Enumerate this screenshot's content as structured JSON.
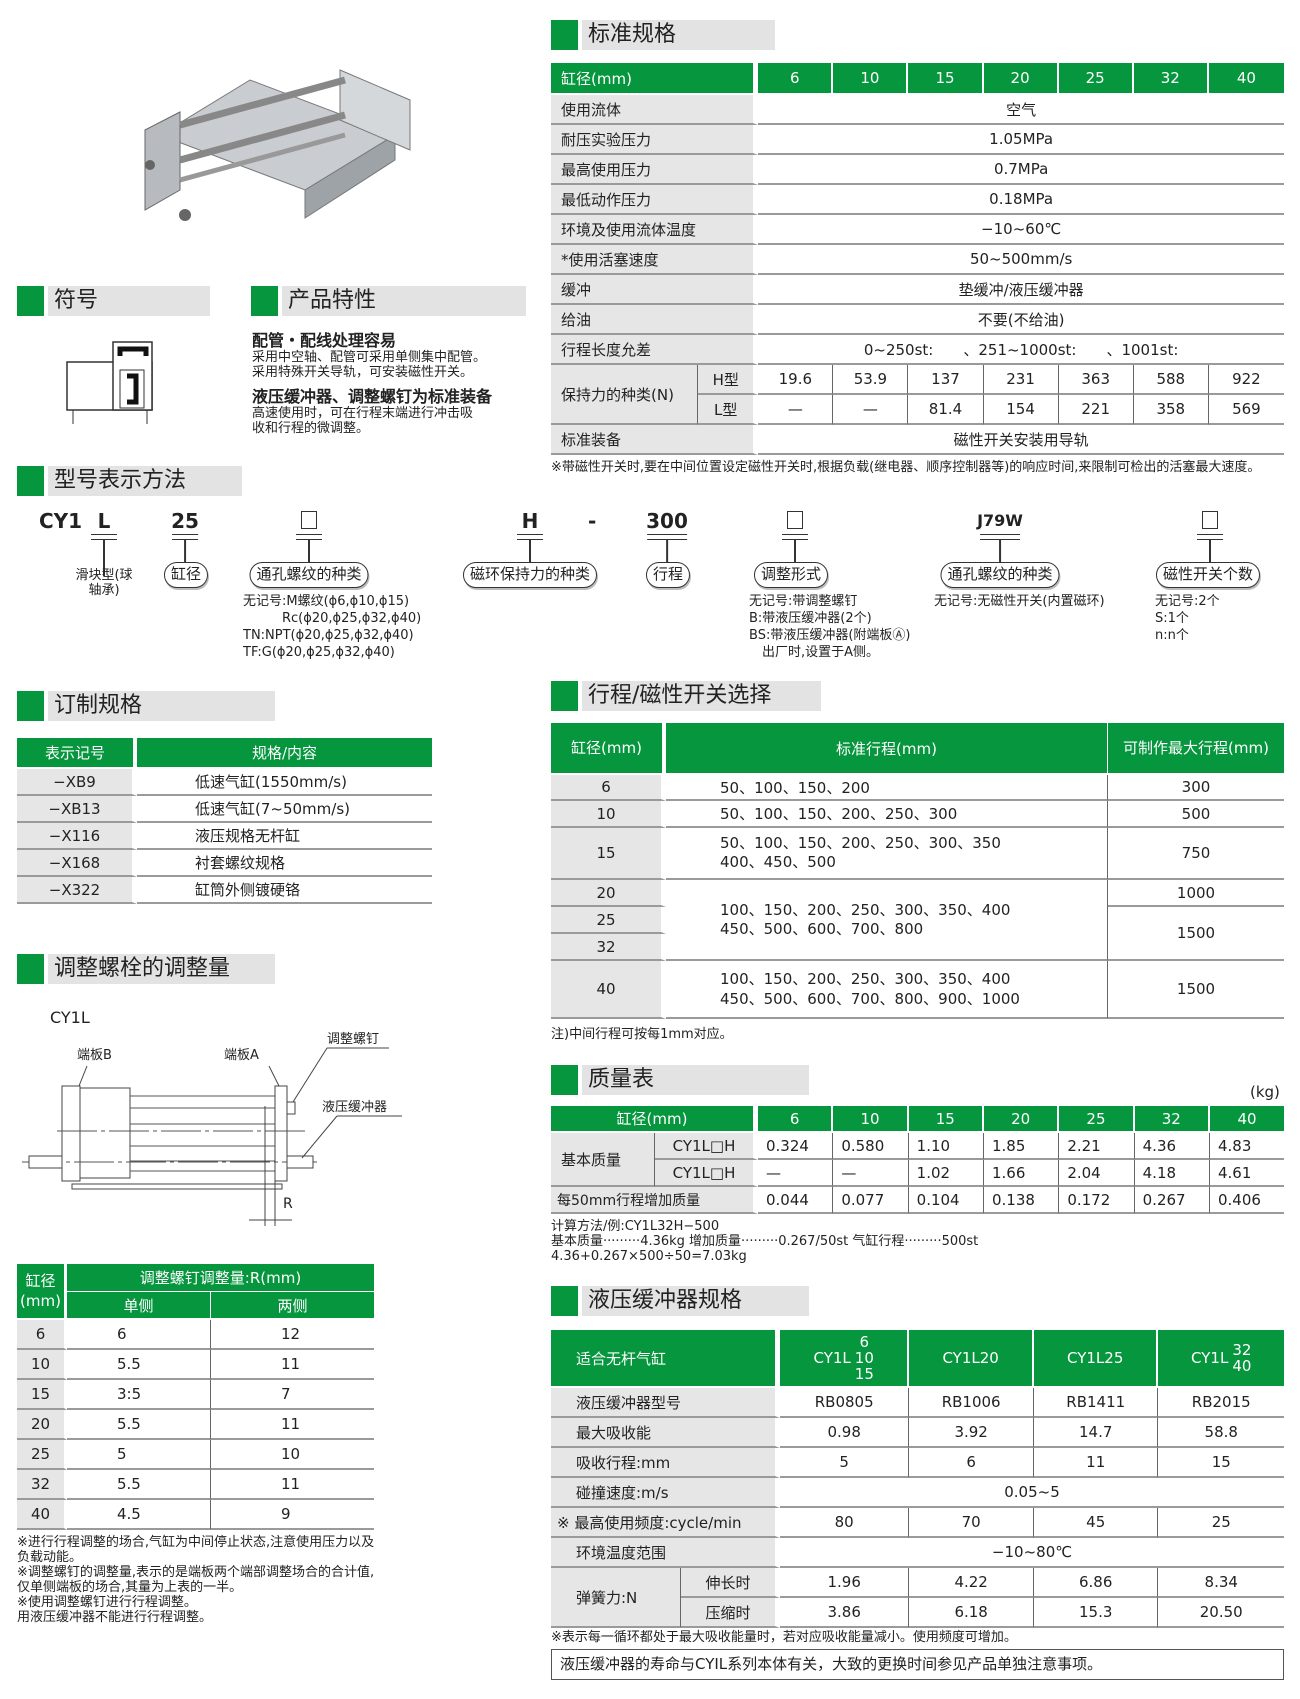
{
  "colors": {
    "accent": "#06963e",
    "label_bg": "#e6e6e6"
  },
  "symbol": {
    "title": "符号"
  },
  "features": {
    "title": "产品特性",
    "items": [
      {
        "heading": "配管・配线处理容易",
        "lines": [
          "采用中空轴、配管可采用单侧集中配管。",
          "采用特殊开关导轨，可安装磁性开关。"
        ]
      },
      {
        "heading": "液压缓冲器、调整螺钉为标准装备",
        "lines": [
          "高速使用时，可在行程末端进行冲击吸",
          "收和行程的微调整。"
        ]
      }
    ]
  },
  "spec": {
    "title": "标准规格",
    "header_label": "缸径(mm)",
    "bores": [
      "6",
      "10",
      "15",
      "20",
      "25",
      "32",
      "40"
    ],
    "rows": [
      {
        "label": "使用流体",
        "value": "空气"
      },
      {
        "label": "耐压实验压力",
        "value": "1.05MPa"
      },
      {
        "label": "最高使用压力",
        "value": "0.7MPa"
      },
      {
        "label": "最低动作压力",
        "value": "0.18MPa"
      },
      {
        "label": "环境及使用流体温度",
        "value": "−10~60℃"
      },
      {
        "label": "*使用活塞速度",
        "value": "50~500mm/s"
      },
      {
        "label": "缓冲",
        "value": "垫缓冲/液压缓冲器"
      },
      {
        "label": "给油",
        "value": "不要(不给油)"
      },
      {
        "label": "行程长度允差",
        "value": "0~250st:　　、251~1000st:　　、1001st:"
      }
    ],
    "holding": {
      "label": "保持力的种类(N)",
      "h_label": "H型",
      "l_label": "L型",
      "h": [
        "19.6",
        "53.9",
        "137",
        "231",
        "363",
        "588",
        "922"
      ],
      "l": [
        "—",
        "—",
        "81.4",
        "154",
        "221",
        "358",
        "569"
      ]
    },
    "equipment": {
      "label": "标准装备",
      "value": "磁性开关安装用导轨"
    },
    "footnote": "※带磁性开关时,要在中间位置设定磁性开关时,根据负载(继电器、顺序控制器等)的响应时间,来限制可检出的活塞最大速度。"
  },
  "model": {
    "title": "型号表示方法",
    "codes": {
      "prefix": "CY1",
      "l": "L",
      "bore": "25",
      "h": "H",
      "dash": "-",
      "stroke": "300",
      "switch": "J79W"
    },
    "labels": {
      "slider": "滑块型(球轴承)",
      "bore": "缸径",
      "port": "通孔螺纹的种类",
      "magnet": "磁环保持力的种类",
      "stroke": "行程",
      "adjust": "调整形式",
      "port2": "通孔螺纹的种类",
      "switch_count": "磁性开关个数"
    },
    "desc_port": [
      "无记号:M螺纹(ϕ6,ϕ10,ϕ15)",
      "　　　Rc(ϕ20,ϕ25,ϕ32,ϕ40)",
      "TN:NPT(ϕ20,ϕ25,ϕ32,ϕ40)",
      "TF:G(ϕ20,ϕ25,ϕ32,ϕ40)"
    ],
    "desc_adjust": [
      "无记号:带调整螺钉",
      "B:带液压缓冲器(2个)",
      "BS:带液压缓冲器(附端板Ⓐ)",
      "　出厂时,设置于A侧。"
    ],
    "desc_switch": [
      "无记号:无磁性开关(内置磁环)"
    ],
    "desc_count": [
      "无记号:2个",
      "S:1个",
      "n:n个"
    ]
  },
  "custom": {
    "title": "订制规格",
    "headers": [
      "表示记号",
      "规格/内容"
    ],
    "rows": [
      [
        "−XB9",
        "低速气缸(1550mm/s)"
      ],
      [
        "−XB13",
        "低速气缸(7~50mm/s)"
      ],
      [
        "−X116",
        "液压规格无杆缸"
      ],
      [
        "−X168",
        "衬套螺纹规格"
      ],
      [
        "−X322",
        "缸筒外侧镀硬铬"
      ]
    ]
  },
  "adjust": {
    "title": "调整螺栓的调整量",
    "model": "CY1L",
    "diagram_labels": {
      "plate_b": "端板B",
      "plate_a": "端板A",
      "screw": "调整螺钉",
      "buffer": "液压缓冲器",
      "r": "R"
    },
    "header_bore": "缸径(mm)",
    "header_main": "调整螺钉调整量:R(mm)",
    "header_single": "单侧",
    "header_both": "两侧",
    "rows": [
      [
        "6",
        "6",
        "12"
      ],
      [
        "10",
        "5.5",
        "11"
      ],
      [
        "15",
        "3:5",
        "7"
      ],
      [
        "20",
        "5.5",
        "11"
      ],
      [
        "25",
        "5",
        "10"
      ],
      [
        "32",
        "5.5",
        "11"
      ],
      [
        "40",
        "4.5",
        "9"
      ]
    ],
    "notes": [
      "※进行行程调整的场合,气缸为中间停止状态,注意使用压力以及负载动能。",
      "※调整螺钉的调整量,表示的是端板两个端部调整场合的合计值,仅单侧端板的场合,其量为上表的一半。",
      "※使用调整螺钉进行行程调整。",
      "用液压缓冲器不能进行行程调整。"
    ]
  },
  "stroke": {
    "title": "行程/磁性开关选择",
    "headers": [
      "缸径(mm)",
      "标准行程(mm)",
      "可制作最大行程(mm)"
    ],
    "rows": [
      {
        "bore": "6",
        "std": [
          "50、100、150、200"
        ],
        "max": "300"
      },
      {
        "bore": "10",
        "std": [
          "50、100、150、200、250、300"
        ],
        "max": "500"
      },
      {
        "bore": "15",
        "std": [
          "50、100、150、200、250、300、350",
          "400、450、500"
        ],
        "max": "750"
      }
    ],
    "group": {
      "bores": [
        "20",
        "25",
        "32"
      ],
      "std": [
        "100、150、200、250、300、350、400",
        "450、500、600、700、800"
      ],
      "max_20": "1000",
      "max_25_32": "1500"
    },
    "row40": {
      "bore": "40",
      "std": [
        "100、150、200、250、300、350、400",
        "450、500、600、700、800、900、1000"
      ],
      "max": "1500"
    },
    "note": "注)中间行程可按每1mm对应。"
  },
  "mass": {
    "title": "质量表",
    "unit": "(kg)",
    "header_label": "缸径(mm)",
    "bores": [
      "6",
      "10",
      "15",
      "20",
      "25",
      "32",
      "40"
    ],
    "base_label": "基本质量",
    "row1": {
      "model": "CY1L□H",
      "values": [
        "0.324",
        "0.580",
        "1.10",
        "1.85",
        "2.21",
        "4.36",
        "4.83"
      ]
    },
    "row2": {
      "model": "CY1L□H",
      "values": [
        "—",
        "—",
        "1.02",
        "1.66",
        "2.04",
        "4.18",
        "4.61"
      ]
    },
    "add": {
      "label": "每50mm行程增加质量",
      "values": [
        "0.044",
        "0.077",
        "0.104",
        "0.138",
        "0.172",
        "0.267",
        "0.406"
      ]
    },
    "calc": [
      "计算方法/例:CY1L32H−500",
      "基本质量·········4.36kg  增加质量·········0.267/50st  气缸行程·········500st",
      "4.36+0.267×500÷50=7.03kg"
    ]
  },
  "buffer": {
    "title": "液压缓冲器规格",
    "header_label": "适合无杆气缸",
    "cols": [
      {
        "prefix": "CY1L",
        "sizes": [
          "6",
          "10",
          "15"
        ]
      },
      {
        "name": "CY1L20"
      },
      {
        "name": "CY1L25"
      },
      {
        "prefix": "CY1L",
        "sizes": [
          "32",
          "40"
        ]
      }
    ],
    "rows": [
      {
        "label": "液压缓冲器型号",
        "values": [
          "RB0805",
          "RB1006",
          "RB1411",
          "RB2015"
        ]
      },
      {
        "label": "最大吸收能",
        "values": [
          "0.98",
          "3.92",
          "14.7",
          "58.8"
        ]
      },
      {
        "label": "吸收行程:mm",
        "values": [
          "5",
          "6",
          "11",
          "15"
        ]
      }
    ],
    "speed": {
      "label": "碰撞速度:m/s",
      "value": "0.05~5"
    },
    "freq": {
      "label": "※ 最高使用频度:cycle/min",
      "values": [
        "80",
        "70",
        "45",
        "25"
      ]
    },
    "temp": {
      "label": "环境温度范围",
      "value": "−10~80℃"
    },
    "spring": {
      "label": "弹簧力:N",
      "ext_label": "伸长时",
      "comp_label": "压缩时",
      "ext": [
        "1.96",
        "4.22",
        "6.86",
        "8.34"
      ],
      "comp": [
        "3.86",
        "6.18",
        "15.3",
        "20.50"
      ]
    },
    "note": "※表示每一循环都处于最大吸收能量时，若对应吸收能量减小。使用频度可增加。",
    "box_note": "液压缓冲器的寿命与CYIL系列本体有关，大致的更换时间参见产品单独注意事项。"
  }
}
